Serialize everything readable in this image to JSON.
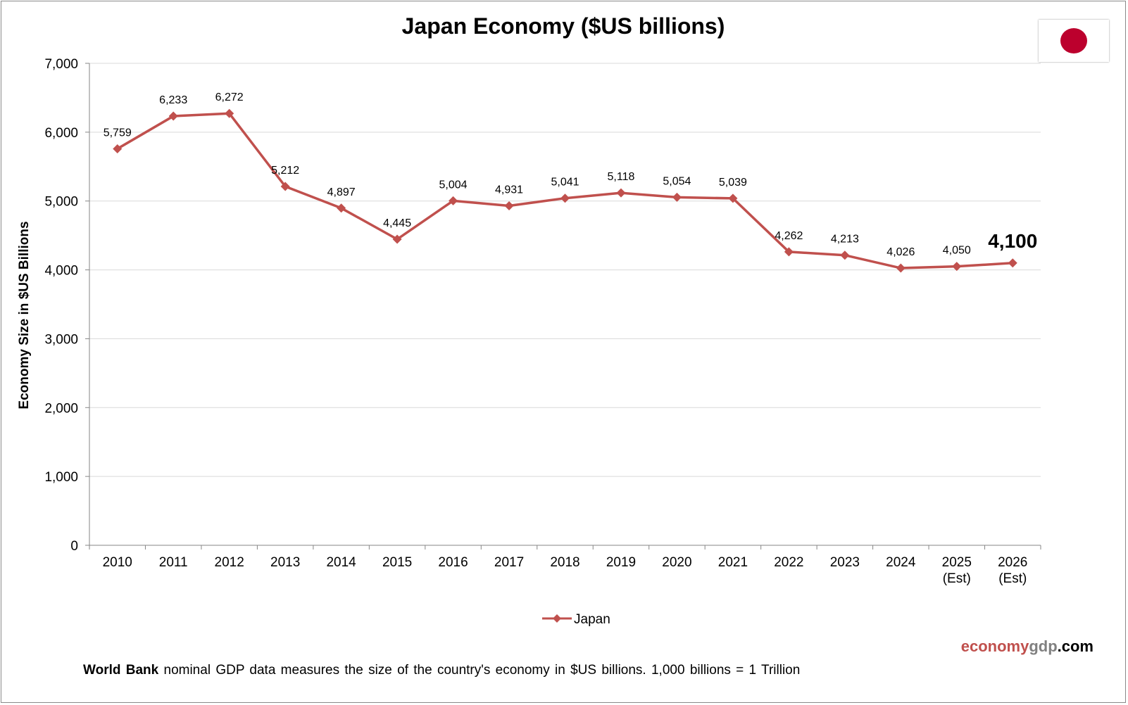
{
  "chart_data": {
    "type": "line",
    "title": "Japan Economy ($US billions)",
    "xlabel": "",
    "ylabel": "Economy Size in $US Billions",
    "categories": [
      "2010",
      "2011",
      "2012",
      "2013",
      "2014",
      "2015",
      "2016",
      "2017",
      "2018",
      "2019",
      "2020",
      "2021",
      "2022",
      "2023",
      "2024",
      "2025\n(Est)",
      "2026\n(Est)"
    ],
    "series": [
      {
        "name": "Japan",
        "values": [
          5759,
          6233,
          6272,
          5212,
          4897,
          4445,
          5004,
          4931,
          5041,
          5118,
          5054,
          5039,
          4262,
          4213,
          4026,
          4050,
          4100
        ],
        "data_labels": [
          "5,759",
          "6,233",
          "6,272",
          "5,212",
          "4,897",
          "4,445",
          "5,004",
          "4,931",
          "5,041",
          "5,118",
          "5,054",
          "5,039",
          "4,262",
          "4,213",
          "4,026",
          "4,050",
          "4,100"
        ],
        "color": "#C0504D"
      }
    ],
    "ylim": [
      0,
      7000
    ],
    "yticks": [
      0,
      1000,
      2000,
      3000,
      4000,
      5000,
      6000,
      7000
    ],
    "ytick_labels": [
      "0",
      "1,000",
      "2,000",
      "3,000",
      "4,000",
      "5,000",
      "6,000",
      "7,000"
    ],
    "grid": true,
    "legend": "bottom-center",
    "highlight_last_label": true
  },
  "flag": {
    "name": "japan-flag",
    "disc_color": "#BC002D"
  },
  "branding": {
    "part1": "economy",
    "part2": "gdp",
    "part3": ".com",
    "color1": "#C0504D",
    "color2": "#808080",
    "color3": "#000000"
  },
  "footnote": {
    "bold": "World Bank",
    "text": " nominal GDP data  measures the size of the country's economy in $US billions. 1,000 billions = 1 Trillion"
  }
}
